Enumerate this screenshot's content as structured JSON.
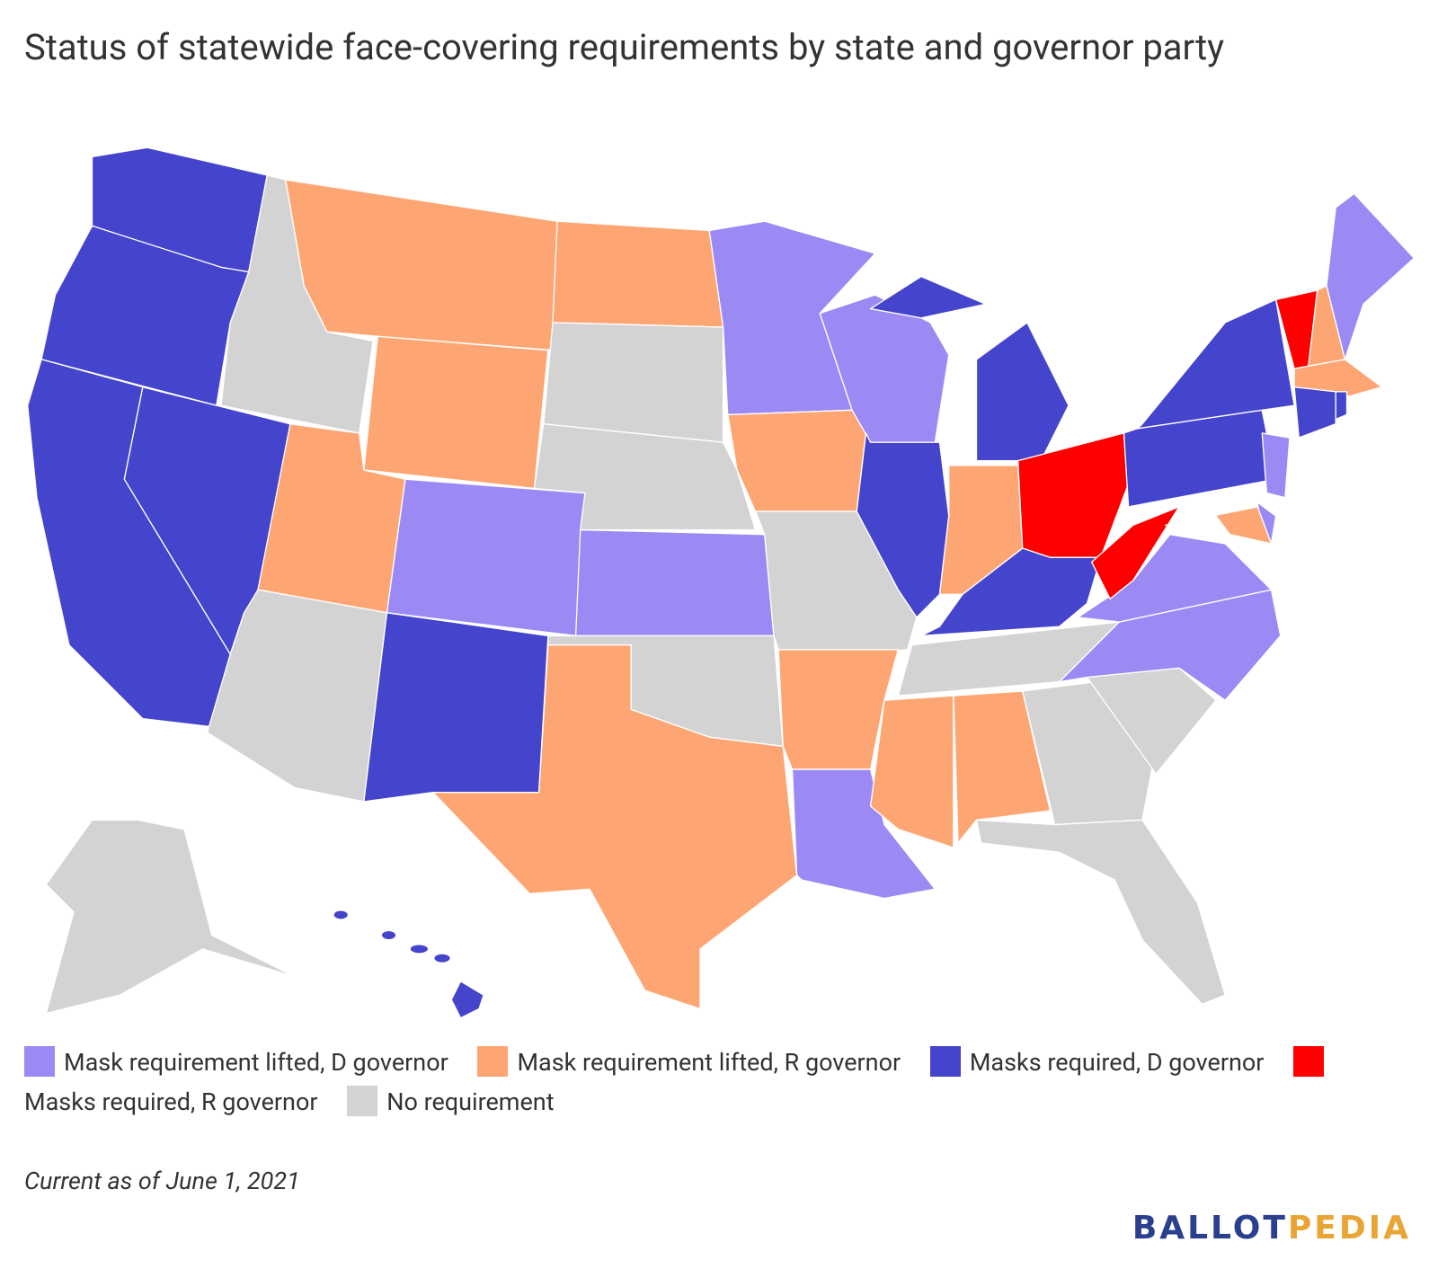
{
  "title": "Status of statewide face-covering requirements by state and governor party",
  "legend": [
    {
      "label": "Mask requirement lifted, D governor",
      "color": "#9b8af4"
    },
    {
      "label": "Mask requirement lifted, R governor",
      "color": "#fda673"
    },
    {
      "label": "Masks required, D governor",
      "color": "#4444cc"
    },
    {
      "label": "Masks required, R governor",
      "color": "#ff0000"
    },
    {
      "label": "No requirement",
      "color": "#d3d3d3"
    }
  ],
  "note": "Current as of June 1, 2021",
  "logo": {
    "first": "BALLOT",
    "second": "PEDIA"
  }
}
